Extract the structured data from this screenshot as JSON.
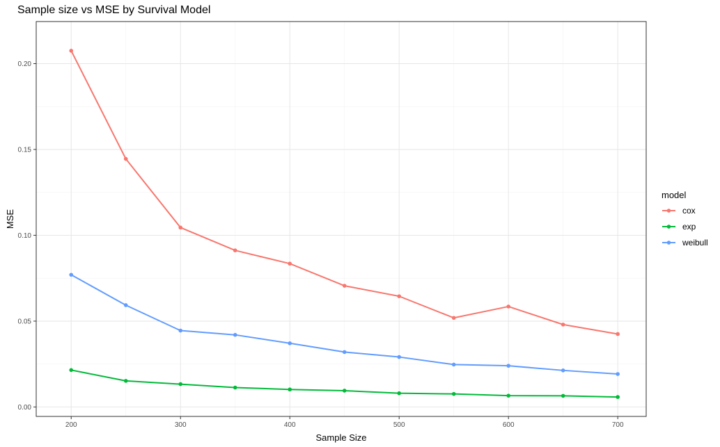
{
  "chart_data": {
    "type": "line",
    "title": "Sample size vs MSE by Survival Model",
    "xlabel": "Sample Size",
    "ylabel": "MSE",
    "x": [
      200,
      250,
      300,
      350,
      400,
      450,
      500,
      550,
      600,
      650,
      700
    ],
    "xlim": [
      168,
      726
    ],
    "ylim": [
      -0.0055,
      0.2245
    ],
    "x_ticks": [
      200,
      300,
      400,
      500,
      600,
      700
    ],
    "y_ticks": [
      0.0,
      0.05,
      0.1,
      0.15,
      0.2
    ],
    "x_tick_labels": [
      "200",
      "300",
      "400",
      "500",
      "600",
      "700"
    ],
    "y_tick_labels": [
      "0.00",
      "0.05",
      "0.10",
      "0.15",
      "0.20"
    ],
    "grid": true,
    "legend": {
      "title": "model",
      "position": "right"
    },
    "series": [
      {
        "name": "cox",
        "color": "#F8766D",
        "values": [
          0.2075,
          0.1445,
          0.1045,
          0.0912,
          0.0835,
          0.0706,
          0.0645,
          0.0519,
          0.0585,
          0.048,
          0.0425
        ]
      },
      {
        "name": "exp",
        "color": "#00BA38",
        "values": [
          0.0215,
          0.0152,
          0.0133,
          0.0113,
          0.0102,
          0.0095,
          0.008,
          0.0076,
          0.0066,
          0.0065,
          0.0058
        ]
      },
      {
        "name": "weibull",
        "color": "#619CFF",
        "values": [
          0.077,
          0.0593,
          0.0445,
          0.042,
          0.0371,
          0.032,
          0.0291,
          0.0247,
          0.024,
          0.0213,
          0.0192
        ]
      }
    ]
  }
}
